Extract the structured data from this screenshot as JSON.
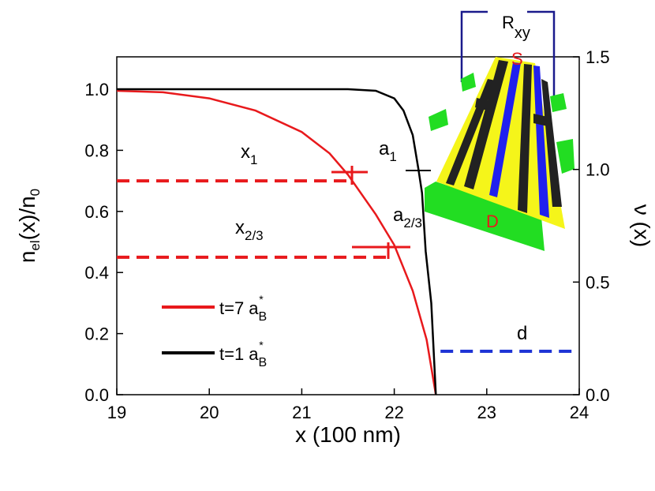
{
  "chart_data": {
    "type": "line",
    "x_label": "x (100 nm)",
    "y_label": {
      "main": "n",
      "sub1": "el",
      "mid": "(x)/n",
      "sub2": "0"
    },
    "y2_label": "ν (x)",
    "xlim": [
      19,
      24
    ],
    "xticks": [
      19,
      20,
      21,
      22,
      23,
      24
    ],
    "ylim": [
      0,
      1.106
    ],
    "yticks": [
      {
        "value": 0,
        "label": "0.0"
      },
      {
        "value": 0.2,
        "label": "0.2"
      },
      {
        "value": 0.4,
        "label": "0.4"
      },
      {
        "value": 0.6,
        "label": "0.6"
      },
      {
        "value": 0.8,
        "label": "0.8"
      },
      {
        "value": 1,
        "label": "1.0"
      }
    ],
    "y2lim": [
      0,
      1.5
    ],
    "y2ticks": [
      {
        "value": 0,
        "label": "0.0"
      },
      {
        "value": 0.5,
        "label": "0.5"
      },
      {
        "value": 1,
        "label": "1.0"
      },
      {
        "value": 1.5,
        "label": "1.5"
      }
    ],
    "series": [
      {
        "name": "t=7 a",
        "name_sub": "B",
        "name_sup": "*",
        "color": "#e8191c",
        "x": [
          19,
          19.5,
          20,
          20.5,
          21,
          21.3,
          21.5,
          21.8,
          22,
          22.2,
          22.35,
          22.45
        ],
        "values": [
          0.995,
          0.99,
          0.97,
          0.93,
          0.86,
          0.79,
          0.72,
          0.59,
          0.49,
          0.34,
          0.18,
          0
        ]
      },
      {
        "name": "t=1 a",
        "name_sub": "B",
        "name_sup": "*",
        "color": "#000000",
        "x": [
          19,
          21.5,
          21.8,
          22,
          22.1,
          22.2,
          22.26,
          22.3,
          22.34,
          22.4,
          22.45
        ],
        "values": [
          1.0,
          1.0,
          0.995,
          0.97,
          0.93,
          0.85,
          0.74,
          0.66,
          0.47,
          0.3,
          0
        ]
      }
    ],
    "reference_lines": [
      {
        "y": 0.7,
        "x": [
          19,
          21.55
        ],
        "color": "#e8191c"
      },
      {
        "y": 0.45,
        "x": [
          19,
          21.95
        ],
        "color": "#e8191c"
      },
      {
        "y": 0.142,
        "x": [
          22.5,
          23.95
        ],
        "color": "#1f35d6"
      }
    ],
    "annotations": [
      {
        "text": "x",
        "sub": "1"
      },
      {
        "text": "a",
        "sub": "1"
      },
      {
        "text": "x",
        "sub": "2/3"
      },
      {
        "text": "a",
        "sub": "2/3"
      },
      {
        "text": "d"
      }
    ],
    "inset": {
      "bracket_label": "R",
      "bracket_sub": "xy",
      "source": "S",
      "drain": "D"
    }
  }
}
